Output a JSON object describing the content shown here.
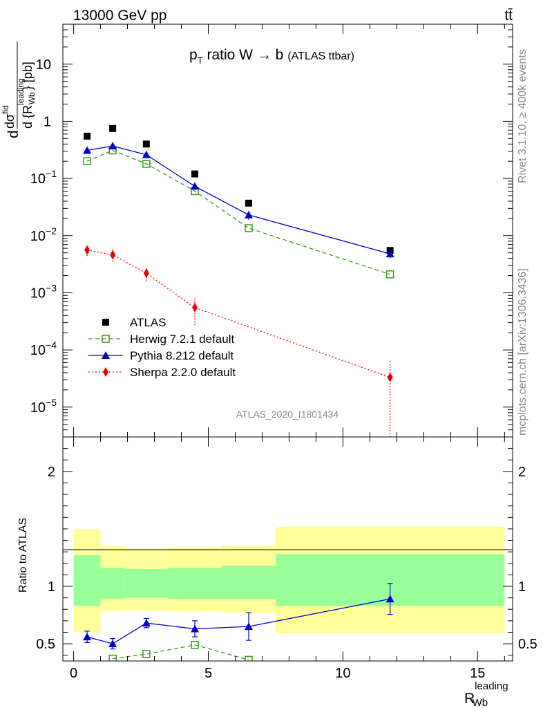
{
  "header": {
    "energy_label": "13000 GeV pp",
    "process_label": "tt̄"
  },
  "side_labels": {
    "rivet": "Rivet 3.1.10, ≥ 400k events",
    "mcplots": "mcplots.cern.ch [arXiv:1306.3436]"
  },
  "chart_data": [
    {
      "type": "scatter",
      "title_main": "p",
      "title_sub": "T",
      "title_rest": " ratio W → b",
      "title_small": "(ATLAS ttbar)",
      "watermark": "ATLAS_2020_I1801434",
      "ylabel_d": "d",
      "ylabel_sigma": "dσ",
      "ylabel_fid": "fid",
      "ylabel_d2": "d {R",
      "ylabel_lead": "leading",
      "ylabel_wb": "Wb",
      "ylabel_close": "} [pb]",
      "yscale": "log",
      "ylim": [
        3e-06,
        50
      ],
      "xlim": [
        -0.4,
        16.3
      ],
      "ytick_labels": [
        {
          "v": 10,
          "base": "10",
          "exp": ""
        },
        {
          "v": 1,
          "base": "1",
          "exp": ""
        },
        {
          "v": 0.1,
          "base": "10",
          "exp": "−1"
        },
        {
          "v": 0.01,
          "base": "10",
          "exp": "−2"
        },
        {
          "v": 0.001,
          "base": "10",
          "exp": "−3"
        },
        {
          "v": 0.0001,
          "base": "10",
          "exp": "−4"
        },
        {
          "v": 1e-05,
          "base": "10",
          "exp": "−5"
        }
      ],
      "series": [
        {
          "name": "ATLAS",
          "color": "#000000",
          "marker": "square-filled",
          "line": "none",
          "x": [
            0.5,
            1.45,
            2.7,
            4.5,
            6.5,
            11.75
          ],
          "y": [
            0.55,
            0.75,
            0.4,
            0.12,
            0.037,
            0.0055
          ]
        },
        {
          "name": "Herwig 7.2.1 default",
          "color": "#3a9a1a",
          "marker": "square-open",
          "line": "dashed",
          "x": [
            0.5,
            1.45,
            2.7,
            4.5,
            6.5,
            11.75
          ],
          "y": [
            0.2,
            0.31,
            0.18,
            0.06,
            0.0135,
            0.0021
          ]
        },
        {
          "name": "Pythia 8.212 default",
          "color": "#0000cc",
          "marker": "triangle-filled",
          "line": "solid",
          "x": [
            0.5,
            1.45,
            2.7,
            4.5,
            6.5,
            11.75
          ],
          "y": [
            0.31,
            0.37,
            0.26,
            0.073,
            0.023,
            0.0048
          ],
          "err": [
            0.015,
            0.02,
            0.015,
            0.005,
            0.004,
            0.0008
          ]
        },
        {
          "name": "Sherpa 2.2.0 default",
          "color": "#ee0000",
          "marker": "diamond-filled",
          "line": "dotted",
          "x": [
            0.5,
            1.45,
            2.7,
            4.5,
            11.75
          ],
          "y": [
            0.0056,
            0.0046,
            0.0022,
            0.00055,
            3.3e-05
          ],
          "err_lo": [
            0.0012,
            0.0011,
            0.0006,
            0.00028,
            3e-05
          ],
          "err_hi": [
            0.0012,
            0.0012,
            0.0006,
            0.00028,
            3.3e-05
          ]
        }
      ]
    },
    {
      "type": "scatter",
      "ylabel": "Ratio to ATLAS",
      "xlabel_main": "R",
      "xlabel_sub": "Wb",
      "xlabel_sup": "leading",
      "xlim": [
        -0.4,
        16.3
      ],
      "ylim": [
        0.35,
        2.3
      ],
      "xtick_labels": [
        "0",
        "5",
        "10",
        "15"
      ],
      "ytick_labels": [
        "2",
        "1",
        "0.5"
      ],
      "band_colors": {
        "inner": "#99ff99",
        "outer": "#ffff99"
      },
      "bands": [
        {
          "x0": 0.0,
          "x1": 1.0,
          "outer_lo": 0.6,
          "outer_hi": 1.5,
          "inner_lo": 0.83,
          "inner_hi": 1.27
        },
        {
          "x0": 1.0,
          "x1": 1.9,
          "outer_lo": 0.78,
          "outer_hi": 1.35,
          "inner_lo": 0.89,
          "inner_hi": 1.16
        },
        {
          "x0": 1.9,
          "x1": 3.5,
          "outer_lo": 0.79,
          "outer_hi": 1.33,
          "inner_lo": 0.9,
          "inner_hi": 1.15
        },
        {
          "x0": 3.5,
          "x1": 5.5,
          "outer_lo": 0.78,
          "outer_hi": 1.34,
          "inner_lo": 0.89,
          "inner_hi": 1.16
        },
        {
          "x0": 5.5,
          "x1": 7.5,
          "outer_lo": 0.77,
          "outer_hi": 1.36,
          "inner_lo": 0.89,
          "inner_hi": 1.18
        },
        {
          "x0": 7.5,
          "x1": 16.0,
          "outer_lo": 0.59,
          "outer_hi": 1.52,
          "inner_lo": 0.83,
          "inner_hi": 1.28
        }
      ],
      "series": [
        {
          "name": "Pythia 8.212 default",
          "color": "#0000cc",
          "marker": "triangle-filled",
          "line": "solid",
          "x": [
            0.5,
            1.45,
            2.7,
            4.5,
            6.5,
            11.75
          ],
          "y": [
            0.56,
            0.5,
            0.68,
            0.63,
            0.65,
            0.89
          ],
          "err": [
            0.05,
            0.045,
            0.04,
            0.07,
            0.12,
            0.135
          ]
        },
        {
          "name": "Herwig 7.2.1 default",
          "color": "#3a9a1a",
          "marker": "square-open",
          "line": "dashed",
          "x": [
            1.45,
            2.7,
            4.5,
            6.5
          ],
          "y": [
            0.37,
            0.41,
            0.49,
            0.36
          ]
        }
      ]
    }
  ]
}
